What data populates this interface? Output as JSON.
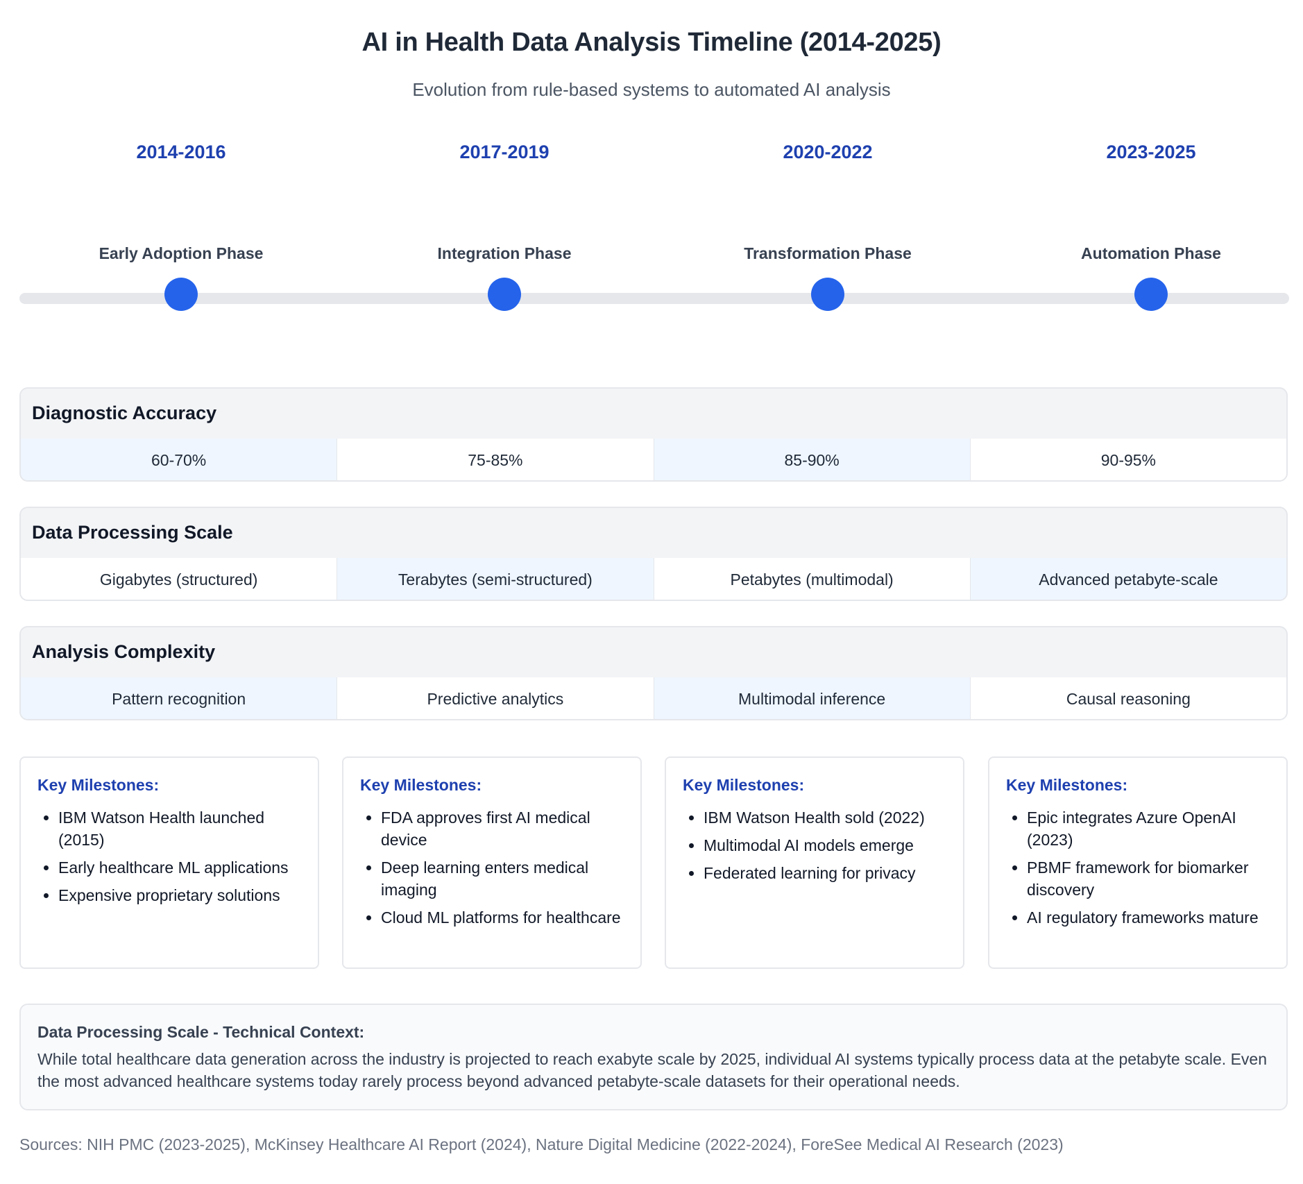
{
  "header": {
    "title": "AI in Health Data Analysis Timeline (2014-2025)",
    "subtitle": "Evolution from rule-based systems to automated AI analysis"
  },
  "phases": [
    {
      "years": "2014-2016",
      "name": "Early Adoption Phase"
    },
    {
      "years": "2017-2019",
      "name": "Integration Phase"
    },
    {
      "years": "2020-2022",
      "name": "Transformation Phase"
    },
    {
      "years": "2023-2025",
      "name": "Automation Phase"
    }
  ],
  "metrics": [
    {
      "title": "Diagnostic Accuracy",
      "values": [
        "60-70%",
        "75-85%",
        "85-90%",
        "90-95%"
      ]
    },
    {
      "title": "Data Processing Scale",
      "values": [
        "Gigabytes (structured)",
        "Terabytes (semi-structured)",
        "Petabytes (multimodal)",
        "Advanced petabyte-scale"
      ]
    },
    {
      "title": "Analysis Complexity",
      "values": [
        "Pattern recognition",
        "Predictive analytics",
        "Multimodal inference",
        "Causal reasoning"
      ]
    }
  ],
  "milestones": [
    {
      "heading": "Key Milestones:",
      "items": [
        "IBM Watson Health launched (2015)",
        "Early healthcare ML applications",
        "Expensive proprietary solutions"
      ]
    },
    {
      "heading": "Key Milestones:",
      "items": [
        "FDA approves first AI medical device",
        "Deep learning enters medical imaging",
        "Cloud ML platforms for healthcare"
      ]
    },
    {
      "heading": "Key Milestones:",
      "items": [
        "IBM Watson Health sold (2022)",
        "Multimodal AI models emerge",
        "Federated learning for privacy"
      ]
    },
    {
      "heading": "Key Milestones:",
      "items": [
        "Epic integrates Azure OpenAI (2023)",
        "PBMF framework for biomarker discovery",
        "AI regulatory frameworks mature"
      ]
    }
  ],
  "context": {
    "heading": "Data Processing Scale - Technical Context:",
    "text": "While total healthcare data generation across the industry is projected to reach exabyte scale by 2025, individual AI systems typically process data at the petabyte scale. Even the most advanced healthcare systems today rarely process beyond advanced petabyte-scale datasets for their operational needs."
  },
  "sources": "Sources: NIH PMC (2023-2025), McKinsey Healthcare AI Report (2024), Nature Digital Medicine (2022-2024), ForeSee Medical AI Research (2023)",
  "colors": {
    "accent": "#2563eb",
    "heading_blue": "#1e40af",
    "track": "#e5e7eb",
    "cell_tint": "#eff6ff"
  }
}
